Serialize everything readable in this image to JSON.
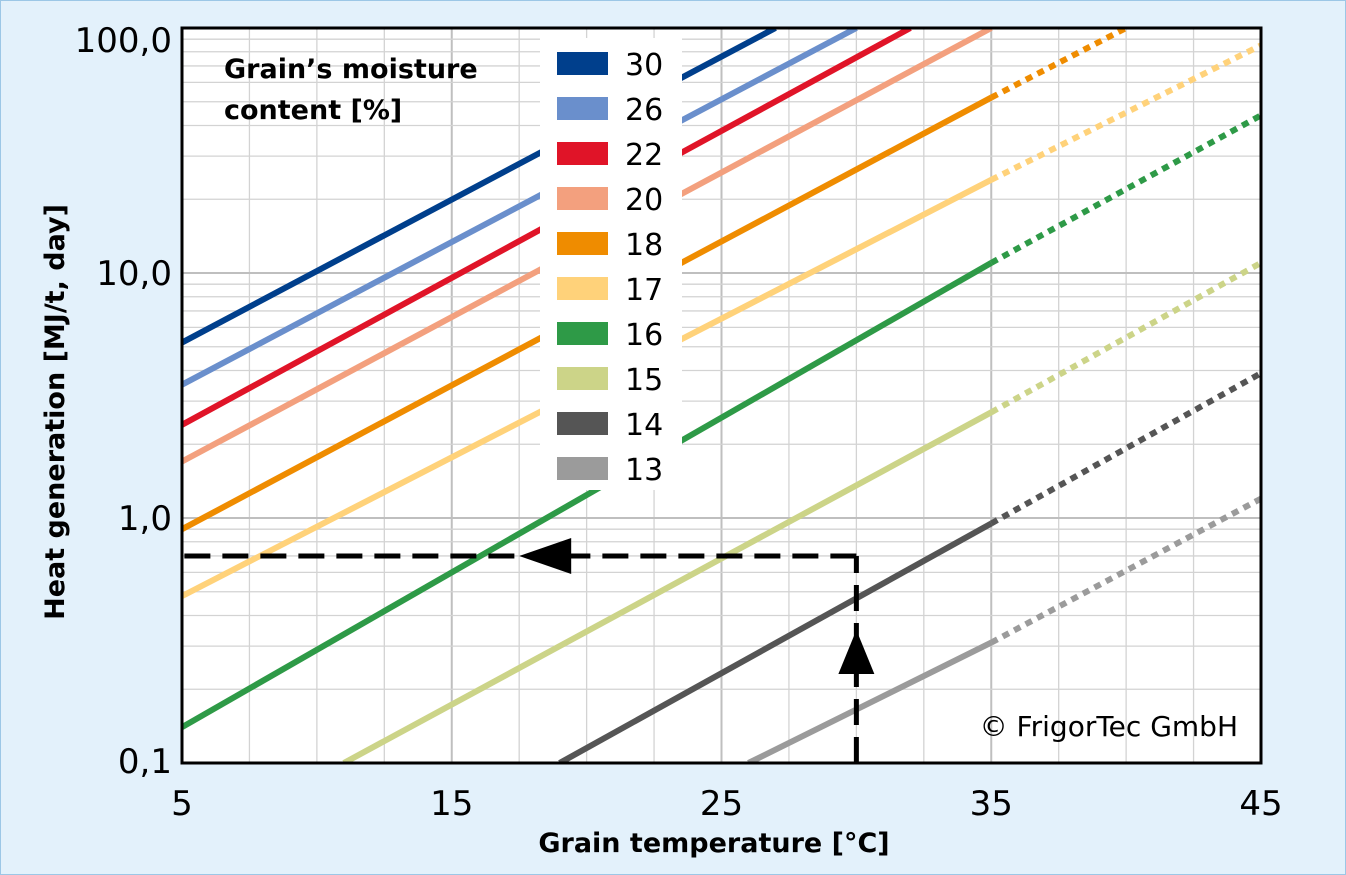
{
  "chart_data": {
    "type": "line",
    "xlabel": "Grain temperature [°C]",
    "ylabel": "Heat generation [MJ/t, day]",
    "x_ticks": [
      "5",
      "15",
      "25",
      "35",
      "45"
    ],
    "y_ticks": [
      "0,1",
      "1,0",
      "10,0",
      "100,0"
    ],
    "xlim": [
      5,
      45
    ],
    "ylim": [
      0.1,
      100
    ],
    "y_scale": "log",
    "grid": true,
    "legend_title": "Grain's moisture content [%]",
    "legend_placement": "top-center",
    "solid_until_x": 35,
    "series": [
      {
        "name": "30",
        "color": "#003f8c",
        "x": [
          5,
          27
        ],
        "y": [
          5.2,
          100
        ]
      },
      {
        "name": "26",
        "color": "#6a8fcc",
        "x": [
          5,
          30
        ],
        "y": [
          3.5,
          100
        ]
      },
      {
        "name": "22",
        "color": "#e01428",
        "x": [
          5,
          32
        ],
        "y": [
          2.4,
          100
        ]
      },
      {
        "name": "20",
        "color": "#f3a07e",
        "x": [
          5,
          35
        ],
        "y": [
          1.7,
          100
        ]
      },
      {
        "name": "18",
        "color": "#ef8c00",
        "x": [
          5,
          35,
          40
        ],
        "y": [
          0.9,
          52,
          100
        ]
      },
      {
        "name": "17",
        "color": "#ffd27a",
        "x": [
          5,
          35,
          45
        ],
        "y": [
          0.48,
          24,
          85
        ]
      },
      {
        "name": "16",
        "color": "#2e9a47",
        "x": [
          5,
          35,
          45
        ],
        "y": [
          0.14,
          11,
          44
        ]
      },
      {
        "name": "15",
        "color": "#ccd488",
        "x": [
          11,
          35,
          45
        ],
        "y": [
          0.1,
          2.7,
          11
        ]
      },
      {
        "name": "14",
        "color": "#555555",
        "x": [
          19,
          35,
          45
        ],
        "y": [
          0.1,
          0.95,
          3.9
        ]
      },
      {
        "name": "13",
        "color": "#9b9b9b",
        "x": [
          26,
          35,
          45
        ],
        "y": [
          0.1,
          0.31,
          1.2
        ]
      }
    ],
    "annotation": {
      "type": "reading-path",
      "x": 30,
      "y": 0.7,
      "style": "dashed-arrows"
    }
  },
  "copyright": "© FrigorTec GmbH",
  "legend_title_lines": [
    "Grain’s moisture",
    "content [%]"
  ]
}
